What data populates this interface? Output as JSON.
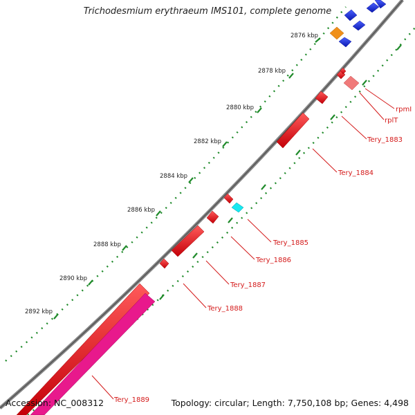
{
  "title": "Trichodesmium erythraeum IMS101, complete genome",
  "footer": {
    "accession": "Accession: NC_008312",
    "summary": "Topology: circular; Length: 7,750,108 bp; Genes: 4,498"
  },
  "ruler_labels": [
    "2876 kbp",
    "2878 kbp",
    "2880 kbp",
    "2882 kbp",
    "2884 kbp",
    "2886 kbp",
    "2888 kbp",
    "2890 kbp",
    "2892 kbp"
  ],
  "gene_labels": [
    "rpmI",
    "rplT",
    "Tery_1883",
    "Tery_1884",
    "Tery_1885",
    "Tery_1886",
    "Tery_1887",
    "Tery_1888",
    "Tery_1889"
  ],
  "colors": {
    "gene_red": "#e8101a",
    "gene_pink": "#f06a6a",
    "gene_magenta": "#e8198c",
    "gene_blue": "#1a2ee8",
    "gene_orange": "#f0901a",
    "gene_cyan": "#18e8f0",
    "label_red": "#d41a1a",
    "ruler_green": "#1f8a2a",
    "backbone": "#888888"
  }
}
